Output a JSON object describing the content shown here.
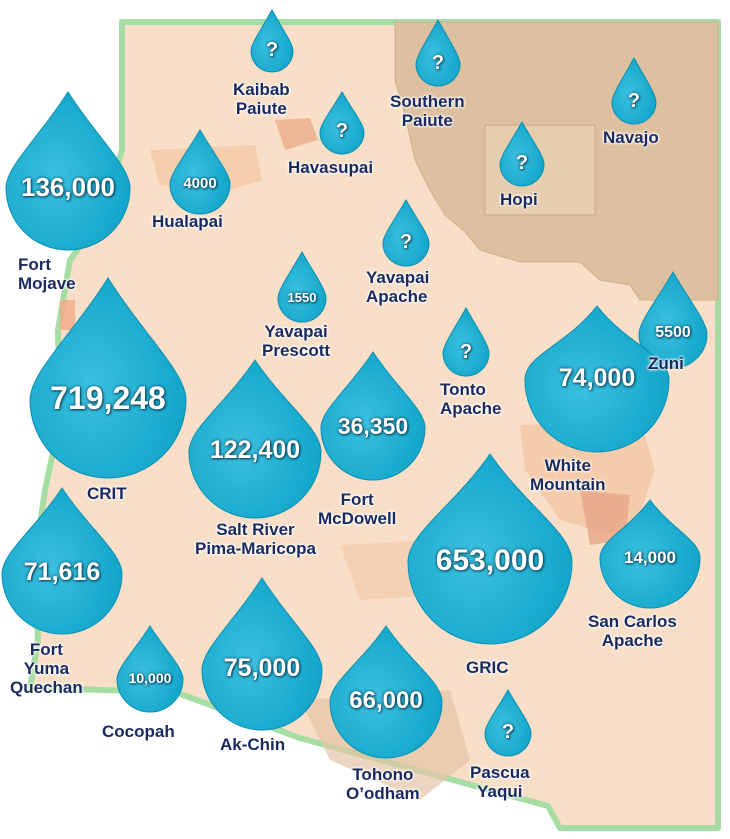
{
  "colors": {
    "drop": "#0fa3c8",
    "drop_light": "#3bc0e0",
    "label": "#1a2a5e",
    "map_base": "#f9dfc8",
    "map_tan": "#d9bc9a",
    "border": "#9bd89a"
  },
  "tribes": [
    {
      "id": "kaibab-paiute",
      "name": "Kaibab\nPaiute",
      "value": "?"
    },
    {
      "id": "southern-paiute",
      "name": "Southern\nPaiute",
      "value": "?"
    },
    {
      "id": "navajo",
      "name": "Navajo",
      "value": "?"
    },
    {
      "id": "havasupai",
      "name": "Havasupai",
      "value": "?"
    },
    {
      "id": "hualapai",
      "name": "Hualapai",
      "value": "4000"
    },
    {
      "id": "hopi",
      "name": "Hopi",
      "value": "?"
    },
    {
      "id": "fort-mojave",
      "name": "Fort\nMojave",
      "value": "136,000"
    },
    {
      "id": "yavapai-apache",
      "name": "Yavapai\nApache",
      "value": "?"
    },
    {
      "id": "yavapai-prescott",
      "name": "Yavapai\nPrescott",
      "value": "1550"
    },
    {
      "id": "zuni",
      "name": "Zuni",
      "value": "5500"
    },
    {
      "id": "tonto-apache",
      "name": "Tonto\nApache",
      "value": "?"
    },
    {
      "id": "crit",
      "name": "CRIT",
      "value": "719,248"
    },
    {
      "id": "white-mountain",
      "name": "White\nMountain",
      "value": "74,000"
    },
    {
      "id": "salt-river",
      "name": "Salt River\nPima-Maricopa",
      "value": "122,400"
    },
    {
      "id": "fort-mcdowell",
      "name": "Fort\nMcDowell",
      "value": "36,350"
    },
    {
      "id": "gric",
      "name": "GRIC",
      "value": "653,000"
    },
    {
      "id": "san-carlos-apache",
      "name": "San Carlos\nApache",
      "value": "14,000"
    },
    {
      "id": "fort-yuma-quechan",
      "name": "Fort\nYuma\nQuechan",
      "value": "71,616"
    },
    {
      "id": "cocopah",
      "name": "Cocopah",
      "value": "10,000"
    },
    {
      "id": "ak-chin",
      "name": "Ak-Chin",
      "value": "75,000"
    },
    {
      "id": "tohono-oodham",
      "name": "Tohono\nO’odham",
      "value": "66,000"
    },
    {
      "id": "pascua-yaqui",
      "name": "Pascua\nYaqui",
      "value": "?"
    }
  ]
}
